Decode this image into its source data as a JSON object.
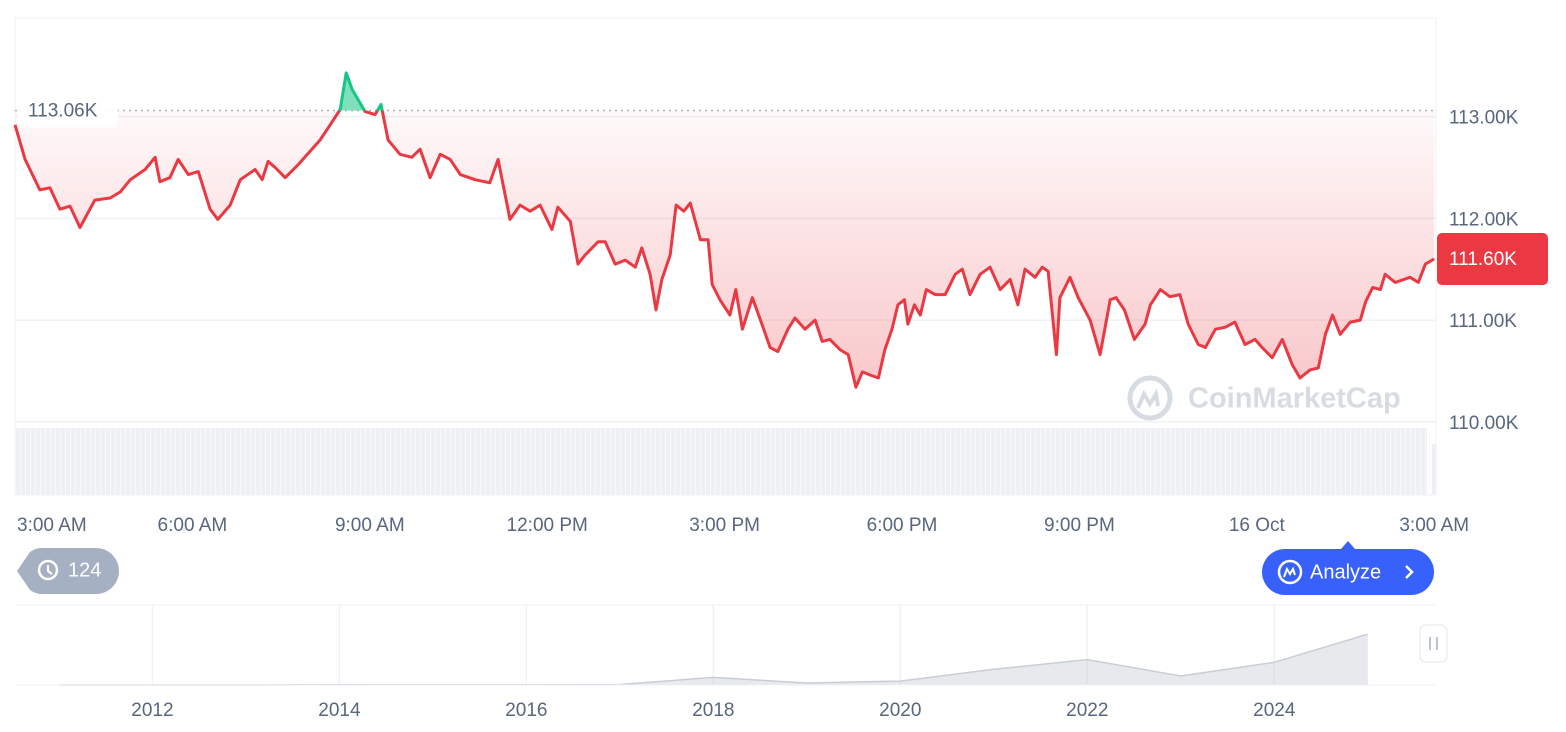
{
  "chart_data": [
    {
      "type": "line",
      "color": "#ea3943",
      "above_reference_color": "#16c784",
      "x": [
        0,
        0.17,
        0.42,
        0.59,
        0.76,
        0.93,
        1.1,
        1.35,
        1.61,
        1.78,
        1.95,
        2.2,
        2.37,
        2.45,
        2.62,
        2.76,
        2.93,
        3.1,
        3.3,
        3.43,
        3.64,
        3.81,
        4.06,
        4.18,
        4.28,
        4.4,
        4.57,
        4.79,
        4.99,
        5.16,
        5.33,
        5.5,
        5.6,
        5.7,
        5.92,
        6.09,
        6.19,
        6.31,
        6.51,
        6.71,
        6.85,
        7.02,
        7.19,
        7.36,
        7.53,
        7.78,
        8.03,
        8.17,
        8.37,
        8.54,
        8.71,
        8.88,
        9.08,
        9.18,
        9.39,
        9.52,
        9.64,
        9.86,
        9.98,
        10.15,
        10.32,
        10.49,
        10.6,
        10.74,
        10.84,
        10.94,
        11.08,
        11.18,
        11.31,
        11.42,
        11.59,
        11.72,
        11.79,
        11.92,
        12.09,
        12.19,
        12.3,
        12.47,
        12.63,
        12.77,
        12.9,
        13.07,
        13.19,
        13.36,
        13.53,
        13.65,
        13.78,
        13.95,
        14.09,
        14.22,
        14.33,
        14.46,
        14.6,
        14.71,
        14.83,
        14.93,
        15.04,
        15.1,
        15.21,
        15.31,
        15.41,
        15.56,
        15.73,
        15.9,
        16.02,
        16.15,
        16.32,
        16.49,
        16.66,
        16.83,
        16.96,
        17.08,
        17.25,
        17.37,
        17.47,
        17.61,
        17.67,
        17.84,
        17.98,
        18.18,
        18.35,
        18.52,
        18.62,
        18.76,
        18.93,
        19.11,
        19.2,
        19.37,
        19.53,
        19.7,
        19.84,
        20.01,
        20.13,
        20.3,
        20.47,
        20.63,
        20.8,
        20.97,
        21.09,
        21.26,
        21.43,
        21.6,
        21.73,
        21.9,
        22.04,
        22.16,
        22.28,
        22.41,
        22.58,
        22.75,
        22.84,
        22.96,
        23.09,
        23.17,
        23.34,
        23.59,
        23.73,
        23.85,
        24
      ],
      "values": [
        112.92,
        112.58,
        112.28,
        112.3,
        112.09,
        112.12,
        111.91,
        112.18,
        112.2,
        112.26,
        112.38,
        112.48,
        112.6,
        112.36,
        112.4,
        112.58,
        112.43,
        112.46,
        112.09,
        111.99,
        112.13,
        112.38,
        112.48,
        112.38,
        112.56,
        112.5,
        112.4,
        112.53,
        112.66,
        112.77,
        112.92,
        113.07,
        113.43,
        113.27,
        113.05,
        113.02,
        113.12,
        112.77,
        112.63,
        112.6,
        112.68,
        112.4,
        112.63,
        112.58,
        112.43,
        112.38,
        112.35,
        112.58,
        111.99,
        112.13,
        112.07,
        112.13,
        111.89,
        112.11,
        111.97,
        111.55,
        111.64,
        111.77,
        111.77,
        111.55,
        111.59,
        111.52,
        111.71,
        111.45,
        111.1,
        111.4,
        111.64,
        112.13,
        112.07,
        112.15,
        111.79,
        111.79,
        111.35,
        111.2,
        111.05,
        111.3,
        110.91,
        111.22,
        110.96,
        110.73,
        110.69,
        110.91,
        111.02,
        110.91,
        111,
        110.79,
        110.81,
        110.71,
        110.66,
        110.34,
        110.49,
        110.46,
        110.43,
        110.71,
        110.91,
        111.15,
        111.2,
        110.96,
        111.15,
        111.05,
        111.3,
        111.25,
        111.25,
        111.45,
        111.5,
        111.25,
        111.45,
        111.52,
        111.3,
        111.4,
        111.15,
        111.5,
        111.42,
        111.52,
        111.48,
        110.66,
        111.22,
        111.42,
        111.22,
        111,
        110.66,
        111.2,
        111.22,
        111.1,
        110.81,
        110.96,
        111.15,
        111.3,
        111.23,
        111.25,
        110.96,
        110.76,
        110.73,
        110.91,
        110.93,
        110.98,
        110.76,
        110.81,
        110.73,
        110.63,
        110.81,
        110.56,
        110.43,
        110.51,
        110.53,
        110.86,
        111.05,
        110.86,
        110.98,
        111,
        111.18,
        111.32,
        111.3,
        111.45,
        111.37,
        111.42,
        111.37,
        111.55,
        111.6
      ],
      "xlim": [
        0,
        24.03
      ],
      "xticks": [
        {
          "value": 0,
          "label": "3:00 AM"
        },
        {
          "value": 3,
          "label": "6:00 AM"
        },
        {
          "value": 6,
          "label": "9:00 AM"
        },
        {
          "value": 9,
          "label": "12:00 PM"
        },
        {
          "value": 12,
          "label": "3:00 PM"
        },
        {
          "value": 15,
          "label": "6:00 PM"
        },
        {
          "value": 18,
          "label": "9:00 PM"
        },
        {
          "value": 21,
          "label": "16 Oct"
        },
        {
          "value": 24,
          "label": "3:00 AM"
        }
      ],
      "ylim": [
        109.28,
        113.97
      ],
      "yticks": [
        {
          "value": 110,
          "label": "110.00K"
        },
        {
          "value": 111,
          "label": "111.00K"
        },
        {
          "value": 112,
          "label": "112.00K"
        },
        {
          "value": 113,
          "label": "113.00K"
        }
      ],
      "grid": true,
      "reference_line": {
        "value": 113.06,
        "label": "113.06K"
      },
      "current_price": {
        "value": 111.6,
        "label": "111.60K"
      }
    },
    {
      "type": "area",
      "color": "#c9ced6",
      "x": [
        2011,
        2012,
        2013,
        2014,
        2015,
        2016,
        2017,
        2018,
        2019,
        2020,
        2021,
        2022,
        2023,
        2024,
        2025
      ],
      "values": [
        0,
        0.005,
        0.013,
        0.8,
        0.3,
        0.43,
        1,
        14,
        3.7,
        7.2,
        29,
        47,
        16.6,
        42,
        94
      ],
      "xlim": [
        2010.53,
        2025.73
      ],
      "xticks": [
        2012,
        2014,
        2016,
        2018,
        2020,
        2022,
        2024
      ],
      "ylim": [
        0,
        148
      ],
      "grid": true
    }
  ],
  "ui": {
    "history_badge": "124",
    "analyze_button": "Analyze",
    "watermark": "CoinMarketCap"
  }
}
